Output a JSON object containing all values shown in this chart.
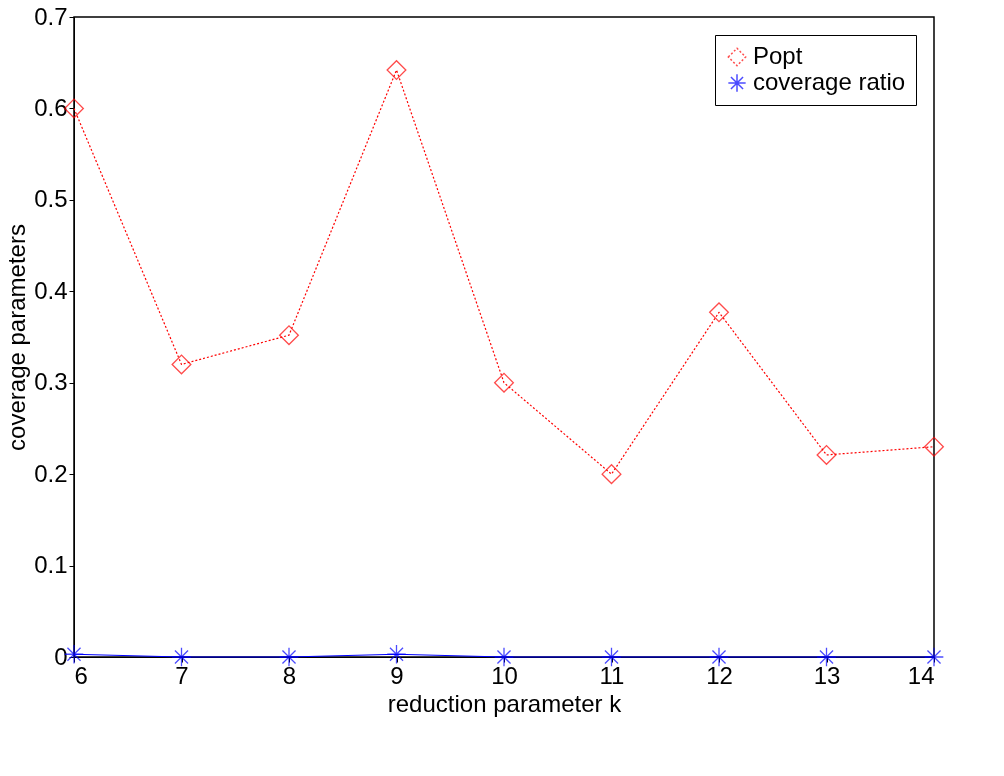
{
  "chart_data": {
    "type": "line",
    "xlabel": "reduction parameter k",
    "ylabel": "coverage parameters",
    "x": [
      6,
      7,
      8,
      9,
      10,
      11,
      12,
      13,
      14
    ],
    "series": [
      {
        "name": "Popt",
        "color": "#ff0000",
        "marker": "diamond",
        "line_style": "dotted",
        "values": [
          0.6,
          0.32,
          0.352,
          0.642,
          0.3,
          0.2,
          0.377,
          0.221,
          0.23
        ]
      },
      {
        "name": "coverage ratio",
        "color": "#0000ff",
        "marker": "cross",
        "line_style": "solid",
        "values": [
          0.003,
          0,
          0,
          0.003,
          0,
          0,
          0,
          0,
          0
        ]
      }
    ],
    "xlim": [
      6,
      14
    ],
    "xticks": [
      6,
      7,
      8,
      9,
      10,
      11,
      12,
      13,
      14
    ],
    "ylim": [
      0,
      0.7
    ],
    "yticks": [
      0,
      0.1,
      0.2,
      0.3,
      0.4,
      0.5,
      0.6,
      0.7
    ],
    "grid": false,
    "legend": "top right"
  }
}
